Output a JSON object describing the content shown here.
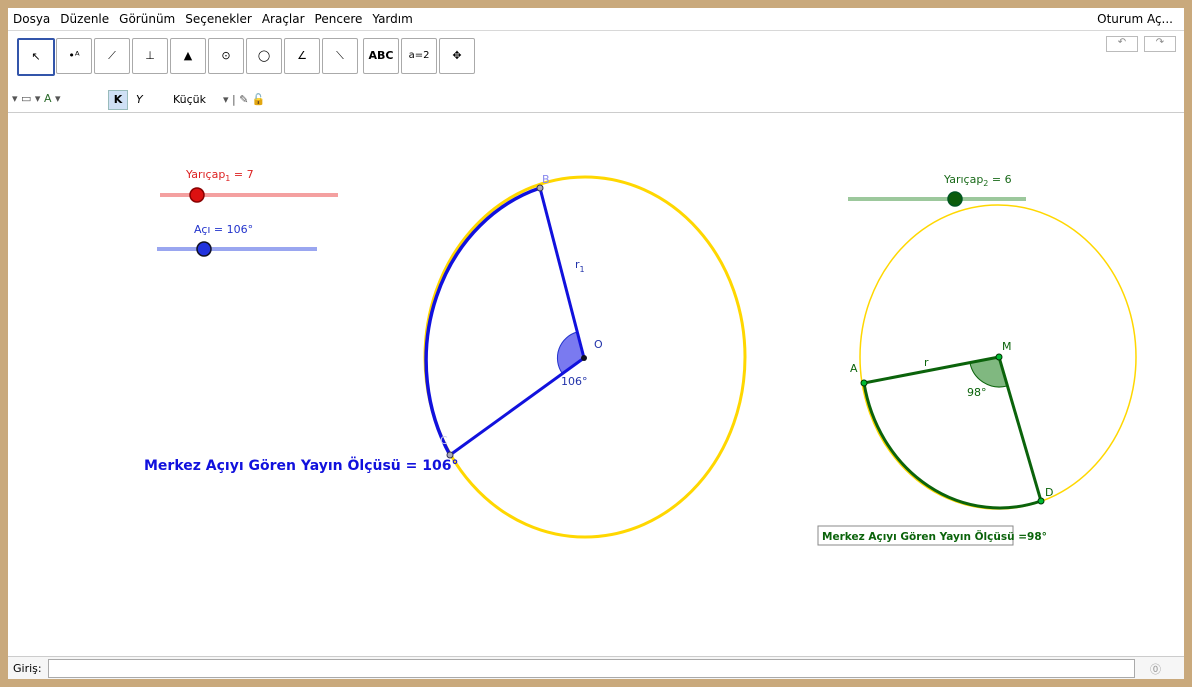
{
  "menu": [
    "Dosya",
    "Düzenle",
    "Görünüm",
    "Seçenekler",
    "Araçlar",
    "Pencere",
    "Yardım"
  ],
  "sign_in": "Oturum Aç...",
  "toolbar": {
    "text_tool": "ABC",
    "slider_tool": "a=2"
  },
  "style_bar": {
    "bold": "K",
    "italic": "Y",
    "size": "Küçük"
  },
  "sliders": [
    {
      "name": "Yarıçap",
      "subscript": "1",
      "value_text": " = 7"
    },
    {
      "label": "Açı = 106°"
    },
    {
      "name": "Yarıçap",
      "subscript": "2",
      "value_text": " = 6"
    }
  ],
  "points": [
    "B",
    "O",
    "C",
    "A",
    "M",
    "D"
  ],
  "segment_labels": [
    {
      "name": "r",
      "subscript": "1"
    },
    {
      "name": "r"
    }
  ],
  "angle_labels": [
    "106°",
    "98°"
  ],
  "texts": [
    "Merkez Açıyı Gören Yayın Ölçüsü = 106°",
    "Merkez Açıyı Gören Yayın Ölçüsü =98°"
  ],
  "input_label": "Giriş:"
}
